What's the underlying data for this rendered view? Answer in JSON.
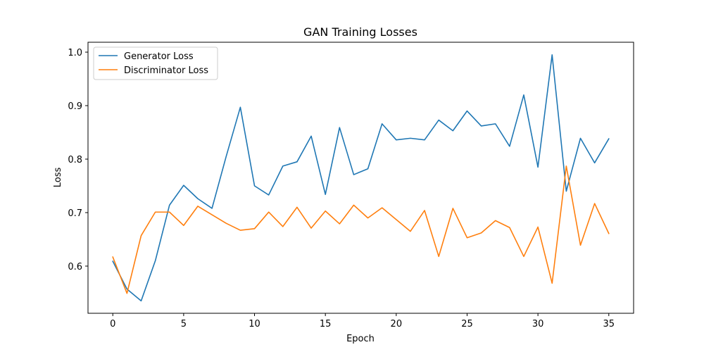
{
  "chart_data": {
    "type": "line",
    "title": "GAN Training Losses",
    "xlabel": "Epoch",
    "ylabel": "Loss",
    "xlim": [
      -1.75,
      36.75
    ],
    "ylim": [
      0.5118,
      1.0185
    ],
    "xticks": [
      0,
      5,
      10,
      15,
      20,
      25,
      30,
      35
    ],
    "yticks": [
      0.6,
      0.7,
      0.8,
      0.9,
      1.0
    ],
    "ytick_labels": [
      "0.6",
      "0.7",
      "0.8",
      "0.9",
      "1.0"
    ],
    "grid": false,
    "legend_position": "upper-left",
    "x": [
      0,
      1,
      2,
      3,
      4,
      5,
      6,
      7,
      8,
      9,
      10,
      11,
      12,
      13,
      14,
      15,
      16,
      17,
      18,
      19,
      20,
      21,
      22,
      23,
      24,
      25,
      26,
      27,
      28,
      29,
      30,
      31,
      32,
      33,
      34,
      35
    ],
    "series": [
      {
        "name": "Generator Loss",
        "color": "#1f77b4",
        "values": [
          0.609,
          0.557,
          0.535,
          0.61,
          0.714,
          0.751,
          0.726,
          0.708,
          0.805,
          0.897,
          0.75,
          0.733,
          0.787,
          0.795,
          0.843,
          0.734,
          0.859,
          0.771,
          0.782,
          0.866,
          0.836,
          0.839,
          0.836,
          0.873,
          0.853,
          0.89,
          0.862,
          0.866,
          0.824,
          0.92,
          0.785,
          0.995,
          0.74,
          0.839,
          0.793,
          0.838
        ]
      },
      {
        "name": "Discriminator Loss",
        "color": "#ff7f0e",
        "values": [
          0.617,
          0.549,
          0.657,
          0.701,
          0.701,
          0.676,
          0.712,
          0.696,
          0.68,
          0.667,
          0.67,
          0.701,
          0.674,
          0.71,
          0.671,
          0.703,
          0.679,
          0.714,
          0.69,
          0.709,
          0.687,
          0.665,
          0.704,
          0.618,
          0.708,
          0.653,
          0.662,
          0.685,
          0.672,
          0.618,
          0.673,
          0.568,
          0.787,
          0.639,
          0.717,
          0.661
        ]
      }
    ]
  }
}
